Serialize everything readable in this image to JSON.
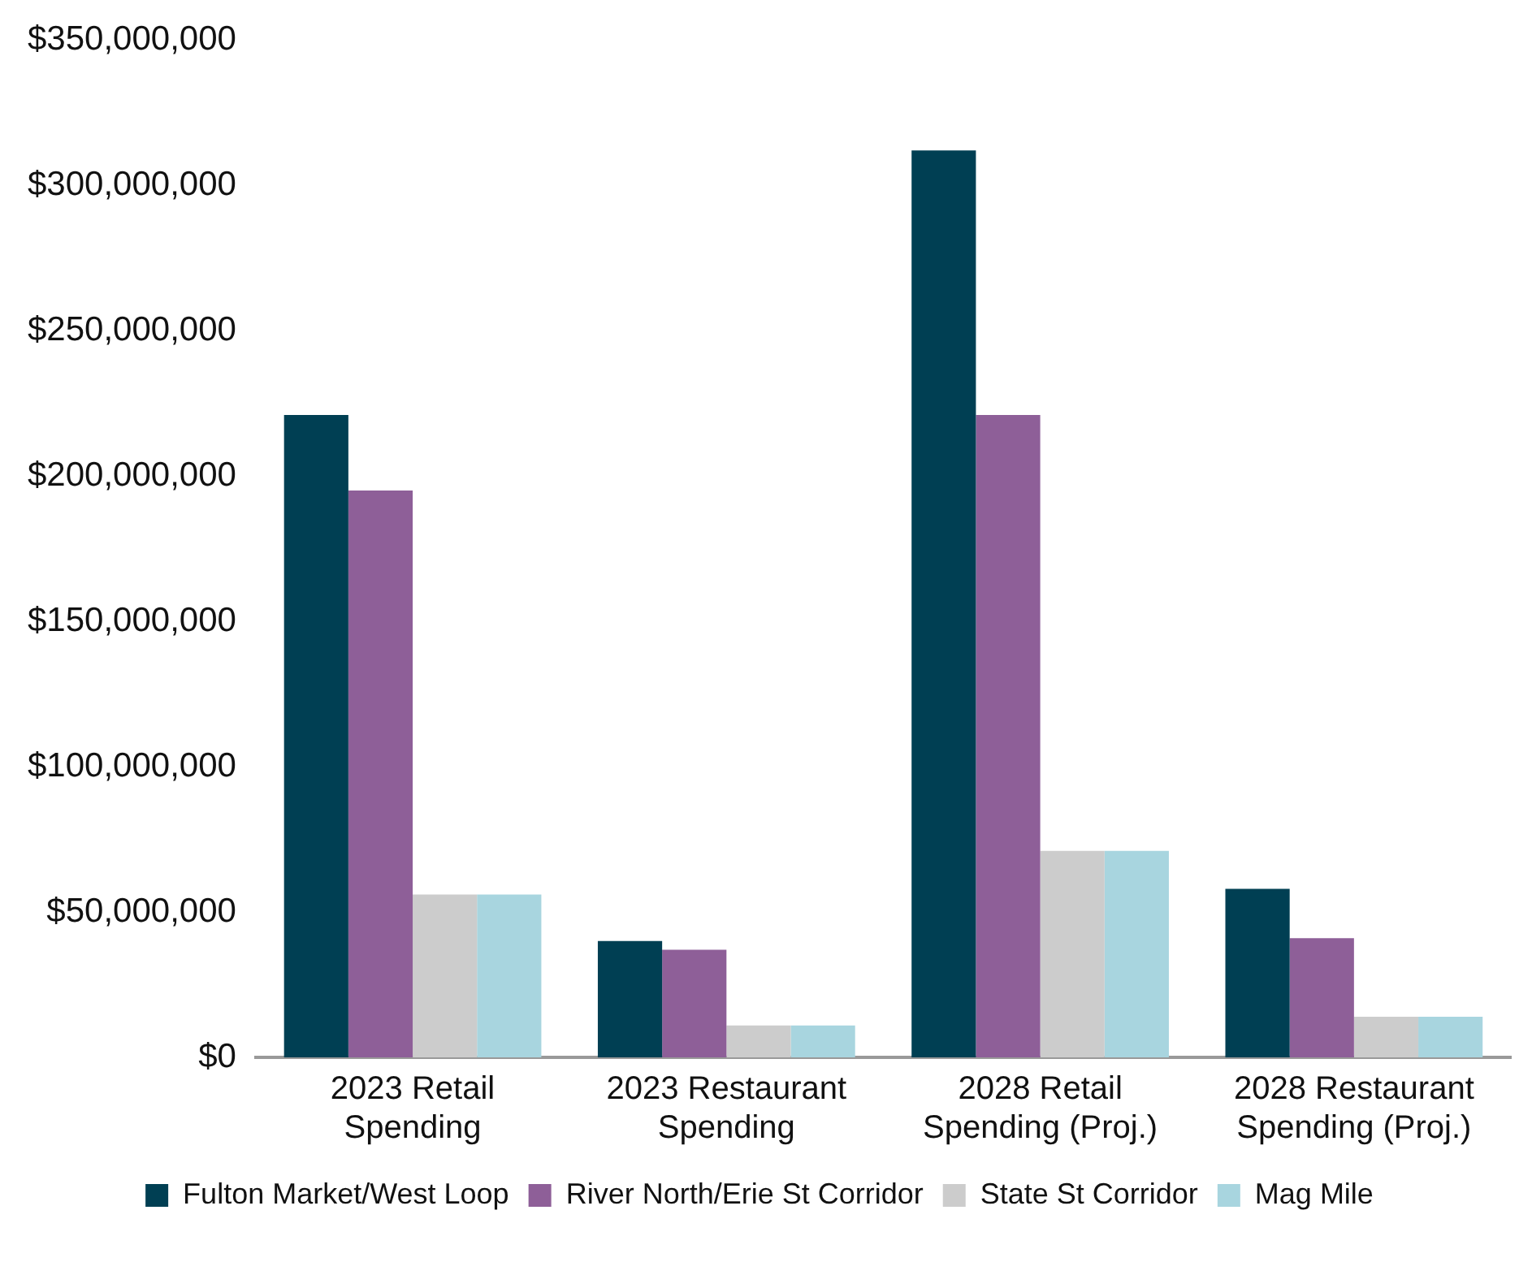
{
  "chart_data": {
    "type": "bar",
    "categories": [
      "2023 Retail Spending",
      "2023 Restaurant Spending",
      "2028 Retail Spending (Proj.)",
      "2028 Restaurant Spending (Proj.)"
    ],
    "series": [
      {
        "name": "Fulton Market/West Loop",
        "color": "#003f53",
        "values": [
          221000000,
          40000000,
          312000000,
          58000000
        ]
      },
      {
        "name": "River North/Erie St Corridor",
        "color": "#8e5f98",
        "values": [
          195000000,
          37000000,
          221000000,
          41000000
        ]
      },
      {
        "name": "State St Corridor",
        "color": "#cccccc",
        "values": [
          56000000,
          11000000,
          71000000,
          14000000
        ]
      },
      {
        "name": "Mag Mile",
        "color": "#a8d5df",
        "values": [
          56000000,
          11000000,
          71000000,
          14000000
        ]
      }
    ],
    "ylim": [
      0,
      350000000
    ],
    "yticks": [
      {
        "value": 0,
        "label": "$0"
      },
      {
        "value": 50000000,
        "label": "$50,000,000"
      },
      {
        "value": 100000000,
        "label": "$100,000,000"
      },
      {
        "value": 150000000,
        "label": "$150,000,000"
      },
      {
        "value": 200000000,
        "label": "$200,000,000"
      },
      {
        "value": 250000000,
        "label": "$250,000,000"
      },
      {
        "value": 300000000,
        "label": "$300,000,000"
      },
      {
        "value": 350000000,
        "label": "$350,000,000"
      }
    ],
    "grid": false,
    "legend": "bottom"
  }
}
